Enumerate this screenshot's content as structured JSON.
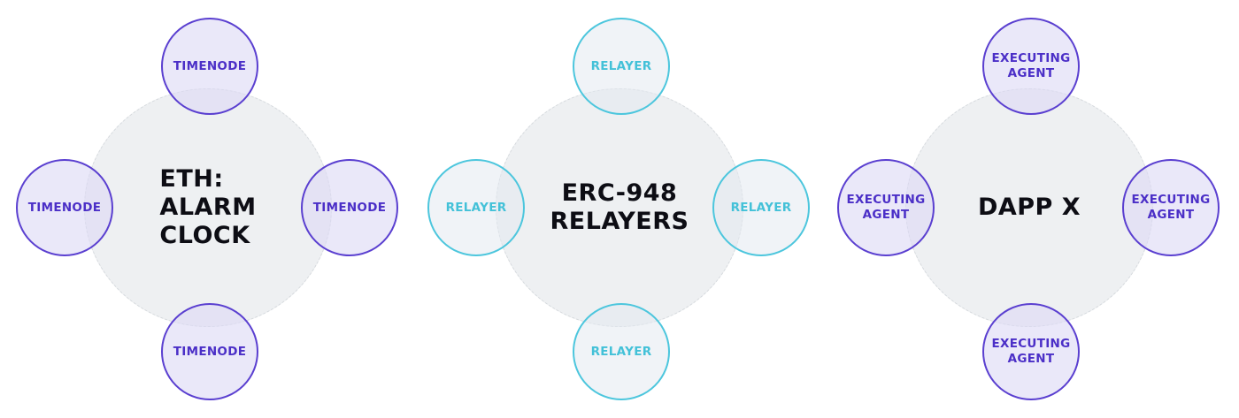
{
  "clusters": [
    {
      "hub_label": "ETH:\nALARM\nCLOCK",
      "node_color": "#5a3fd0",
      "nodes": {
        "top": "TIMENODE",
        "left": "TIMENODE",
        "right": "TIMENODE",
        "bottom": "TIMENODE"
      }
    },
    {
      "hub_label": "ERC-948\nRELAYERS",
      "node_color": "#4cc6dd",
      "nodes": {
        "top": "RELAYER",
        "left": "RELAYER",
        "right": "RELAYER",
        "bottom": "RELAYER"
      }
    },
    {
      "hub_label": "DAPP X",
      "node_color": "#5a3fd0",
      "nodes": {
        "top": "EXECUTING\nAGENT",
        "left": "EXECUTING\nAGENT",
        "right": "EXECUTING\nAGENT",
        "bottom": "EXECUTING\nAGENT"
      }
    }
  ],
  "colors": {
    "hub_fill": "#eef0f2",
    "hub_text": "#0d0d14",
    "purple": "#5a3fd0",
    "cyan": "#4cc6dd"
  }
}
